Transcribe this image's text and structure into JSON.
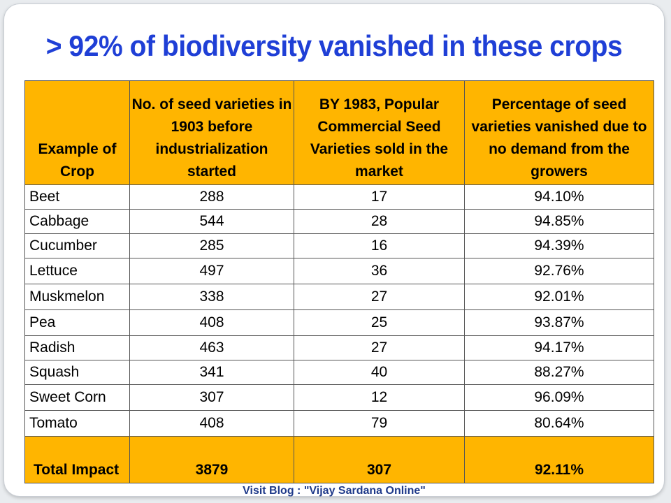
{
  "title": "> 92% of biodiversity vanished in these crops",
  "table": {
    "headers": [
      "Example of Crop",
      "No. of seed varieties in 1903 before industrialization started",
      "BY 1983, Popular Commercial Seed Varieties sold in the market",
      "Percentage of seed varieties vanished due to no demand from the growers"
    ],
    "rows": [
      {
        "crop": "Beet",
        "v1903": "288",
        "v1983": "17",
        "pct": "94.10%"
      },
      {
        "crop": "Cabbage",
        "v1903": "544",
        "v1983": "28",
        "pct": "94.85%"
      },
      {
        "crop": "Cucumber",
        "v1903": "285",
        "v1983": "16",
        "pct": "94.39%"
      },
      {
        "crop": "Lettuce",
        "v1903": "497",
        "v1983": "36",
        "pct": "92.76%"
      },
      {
        "crop": "Muskmelon",
        "v1903": "338",
        "v1983": "27",
        "pct": "92.01%"
      },
      {
        "crop": "Pea",
        "v1903": "408",
        "v1983": "25",
        "pct": "93.87%"
      },
      {
        "crop": "Radish",
        "v1903": "463",
        "v1983": "27",
        "pct": "94.17%"
      },
      {
        "crop": "Squash",
        "v1903": "341",
        "v1983": "40",
        "pct": "88.27%"
      },
      {
        "crop": "Sweet Corn",
        "v1903": "307",
        "v1983": "12",
        "pct": "96.09%"
      },
      {
        "crop": "Tomato",
        "v1903": "408",
        "v1983": "79",
        "pct": "80.64%"
      }
    ],
    "total": {
      "crop": "Total Impact",
      "v1903": "3879",
      "v1983": "307",
      "pct": "92.11%"
    }
  },
  "footer": "Visit Blog : \"Vijay Sardana Online\"",
  "colors": {
    "header_bg": "#ffb500",
    "title": "#1f3fd6",
    "footer": "#1f3a8a"
  }
}
